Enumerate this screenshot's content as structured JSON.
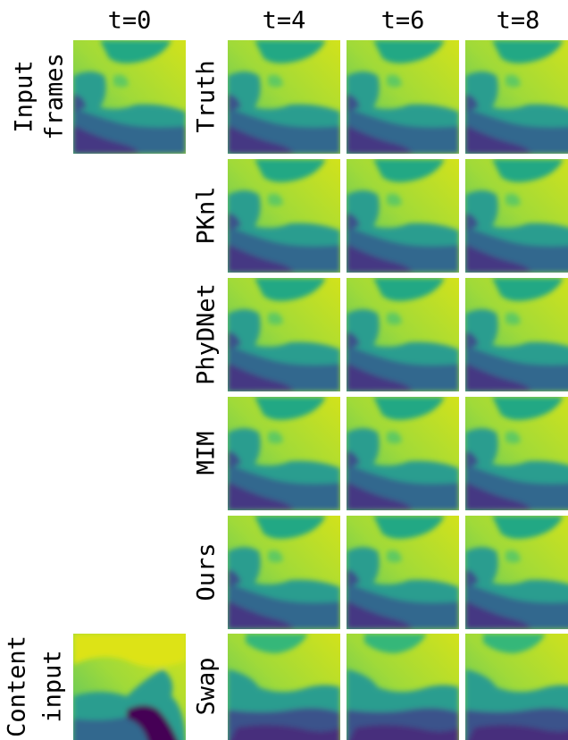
{
  "column_headers": [
    "t=0",
    "t=4",
    "t=6",
    "t=8"
  ],
  "input_frames_label": [
    "Input",
    "frames"
  ],
  "content_input_label": [
    "Content",
    "input"
  ],
  "row_labels": [
    "Truth",
    "PKnl",
    "PhyDNet",
    "MIM",
    "Ours",
    "Swap"
  ]
}
